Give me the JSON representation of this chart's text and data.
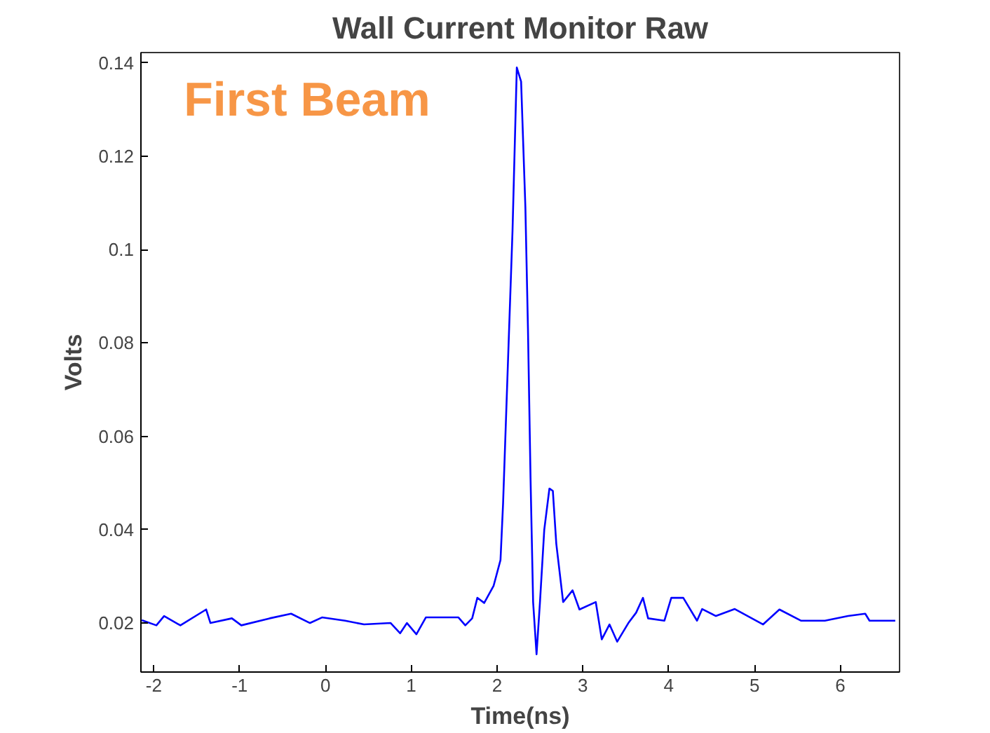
{
  "chart_data": {
    "type": "line",
    "title": "Wall Current Monitor Raw",
    "xlabel": "Time(ns)",
    "ylabel": "Volts",
    "annotations": [
      "First Beam"
    ],
    "x": [
      -2.14,
      -1.97,
      -1.88,
      -1.69,
      -1.39,
      -1.34,
      -1.09,
      -0.98,
      -0.65,
      -0.4,
      -0.18,
      -0.04,
      0.23,
      0.45,
      0.76,
      0.87,
      0.95,
      1.06,
      1.17,
      1.55,
      1.63,
      1.71,
      1.77,
      1.85,
      1.96,
      2.04,
      2.07,
      2.12,
      2.18,
      2.23,
      2.28,
      2.33,
      2.36,
      2.39,
      2.42,
      2.46,
      2.5,
      2.55,
      2.61,
      2.65,
      2.69,
      2.77,
      2.88,
      2.96,
      3.15,
      3.22,
      3.31,
      3.4,
      3.53,
      3.62,
      3.7,
      3.76,
      3.95,
      4.03,
      4.17,
      4.33,
      4.39,
      4.55,
      4.77,
      5.1,
      5.29,
      5.54,
      5.82,
      6.09,
      6.29,
      6.34,
      6.64
    ],
    "series": [
      {
        "color": "#0000ff",
        "values": [
          0.0206,
          0.0195,
          0.0215,
          0.0195,
          0.0229,
          0.02,
          0.021,
          0.0195,
          0.021,
          0.022,
          0.02,
          0.0212,
          0.0205,
          0.0197,
          0.02,
          0.0178,
          0.02,
          0.0176,
          0.0212,
          0.0212,
          0.0195,
          0.021,
          0.0254,
          0.0243,
          0.028,
          0.0335,
          0.0456,
          0.0722,
          0.104,
          0.139,
          0.136,
          0.109,
          0.083,
          0.051,
          0.0245,
          0.0133,
          0.0245,
          0.04,
          0.0488,
          0.0483,
          0.037,
          0.0245,
          0.027,
          0.0229,
          0.0245,
          0.0165,
          0.0197,
          0.016,
          0.02,
          0.0222,
          0.0254,
          0.021,
          0.0205,
          0.0254,
          0.0254,
          0.0205,
          0.023,
          0.0215,
          0.023,
          0.0197,
          0.0229,
          0.0205,
          0.0205,
          0.0215,
          0.022,
          0.0205,
          0.0205
        ]
      }
    ],
    "xlim": [
      -2.15,
      6.69
    ],
    "ylim": [
      0.0095,
      0.1422
    ],
    "xticks": [
      -2,
      -1,
      0,
      1,
      2,
      3,
      4,
      5,
      6
    ],
    "yticks": [
      {
        "value": 0.02,
        "label": "0.02"
      },
      {
        "value": 0.04,
        "label": "0.04"
      },
      {
        "value": 0.06,
        "label": "0.06"
      },
      {
        "value": 0.08,
        "label": "0.08"
      },
      {
        "value": 0.1,
        "label": "0.1"
      },
      {
        "value": 0.12,
        "label": "0.12"
      },
      {
        "value": 0.14,
        "label": "0.14"
      }
    ],
    "grid": false,
    "marker": "none",
    "line_style": "solid"
  }
}
